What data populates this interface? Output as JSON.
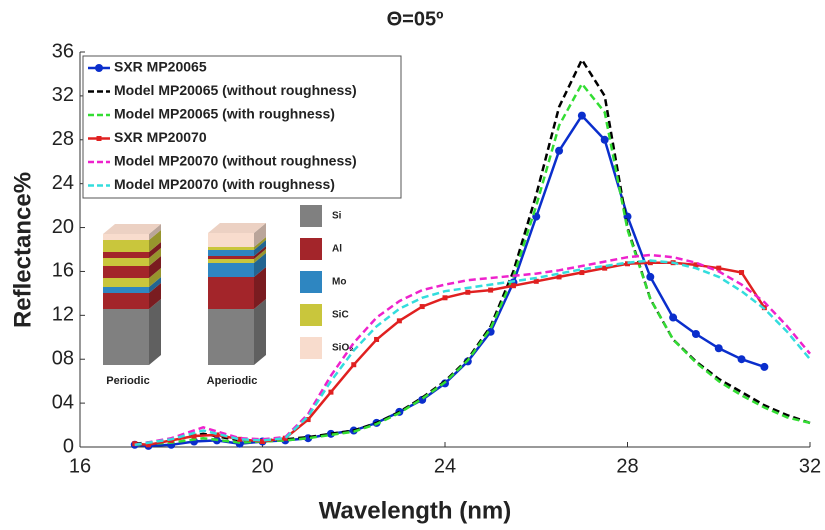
{
  "chart_data": {
    "type": "line",
    "title": "Θ=05º",
    "xlabel": "Wavelength (nm)",
    "ylabel": "Reflectance%",
    "xlim": [
      16,
      32
    ],
    "xticks": [
      16,
      20,
      24,
      28,
      32
    ],
    "ylim": [
      0,
      36
    ],
    "yticks": [
      0,
      {
        "value": 4,
        "label": "04"
      },
      {
        "value": 8,
        "label": "08"
      },
      12,
      16,
      20,
      24,
      28,
      32,
      36
    ],
    "grid": false,
    "legend": "upper left",
    "series": [
      {
        "name": "SXR MP20065",
        "color": "#0a2ecc",
        "dash": false,
        "marker": "circle",
        "x": [
          17.2,
          17.5,
          18,
          18.5,
          19,
          19.5,
          20,
          20.5,
          21,
          21.5,
          22,
          22.5,
          23,
          23.5,
          24,
          24.5,
          25,
          25.5,
          26,
          26.5,
          27,
          27.5,
          28,
          28.5,
          29,
          29.5,
          30,
          30.5,
          31
        ],
        "values": [
          0.2,
          0.1,
          0.2,
          0.5,
          0.6,
          0.3,
          0.5,
          0.6,
          0.8,
          1.2,
          1.5,
          2.2,
          3.2,
          4.3,
          5.8,
          7.8,
          10.5,
          15,
          21,
          27,
          30.2,
          28,
          21,
          15.5,
          11.8,
          10.3,
          9,
          8,
          7.3
        ]
      },
      {
        "name": "Model MP20065 (without roughness)",
        "color": "#000000",
        "dash": true,
        "marker": "none",
        "x": [
          17.2,
          18,
          18.7,
          19.5,
          20,
          20.5,
          21,
          21.5,
          22,
          22.5,
          23,
          23.5,
          24,
          24.5,
          25,
          25.5,
          26,
          26.5,
          27,
          27.5,
          28,
          28.5,
          29,
          29.5,
          30,
          30.5,
          31,
          31.5,
          32
        ],
        "values": [
          0.3,
          0.6,
          1.2,
          0.6,
          0.6,
          0.7,
          0.9,
          1.2,
          1.5,
          2.2,
          3.2,
          4.5,
          6,
          8,
          11,
          16,
          23,
          31,
          35.3,
          32,
          20,
          13.5,
          9.8,
          7.8,
          6.2,
          5,
          3.8,
          2.9,
          2.2
        ]
      },
      {
        "name": "Model MP20065 (with roughness)",
        "color": "#33dd33",
        "dash": true,
        "marker": "none",
        "x": [
          17.2,
          18,
          18.7,
          19.5,
          20,
          20.5,
          21,
          21.5,
          22,
          22.5,
          23,
          23.5,
          24,
          24.5,
          25,
          25.5,
          26,
          26.5,
          27,
          27.5,
          28,
          28.5,
          29,
          29.5,
          30,
          30.5,
          31,
          31.5,
          32
        ],
        "values": [
          0.2,
          0.4,
          0.8,
          0.4,
          0.5,
          0.6,
          0.8,
          1.1,
          1.4,
          2.1,
          3.1,
          4.4,
          5.9,
          7.9,
          10.8,
          15.5,
          22,
          29.3,
          33.1,
          30.5,
          19.8,
          13.5,
          9.8,
          7.7,
          6,
          4.7,
          3.6,
          2.7,
          2.2
        ]
      },
      {
        "name": "SXR MP20070",
        "color": "#e02020",
        "dash": false,
        "marker": "square",
        "x": [
          17.2,
          17.5,
          18,
          18.5,
          19,
          19.5,
          20,
          20.5,
          21,
          21.5,
          22,
          22.5,
          23,
          23.5,
          24,
          24.5,
          25,
          25.5,
          26,
          26.5,
          27,
          27.5,
          28,
          28.5,
          29,
          29.5,
          30,
          30.5,
          31
        ],
        "values": [
          0.3,
          0.2,
          0.6,
          1.0,
          1.1,
          0.7,
          0.5,
          0.8,
          2.5,
          5,
          7.5,
          9.8,
          11.5,
          12.8,
          13.6,
          14.1,
          14.3,
          14.7,
          15.1,
          15.5,
          15.9,
          16.3,
          16.7,
          16.8,
          16.8,
          16.6,
          16.3,
          15.9,
          12.7
        ]
      },
      {
        "name": "Model MP20070 (without roughness)",
        "color": "#ee22cc",
        "dash": true,
        "marker": "none",
        "x": [
          17.2,
          18,
          18.7,
          19.5,
          20,
          20.5,
          21,
          21.5,
          22,
          22.5,
          23,
          23.5,
          24,
          24.5,
          25,
          25.5,
          26,
          26.5,
          27,
          27.5,
          28,
          28.5,
          29,
          29.5,
          30,
          30.5,
          31,
          31.5,
          32
        ],
        "values": [
          0.2,
          0.8,
          1.8,
          0.8,
          0.7,
          0.9,
          3,
          6.5,
          9.5,
          11.8,
          13.3,
          14.3,
          14.8,
          15.2,
          15.4,
          15.6,
          15.8,
          16.1,
          16.5,
          16.9,
          17.3,
          17.5,
          17.3,
          16.8,
          16,
          14.8,
          13.2,
          11,
          8.5
        ]
      },
      {
        "name": "Model MP20070 (with roughness)",
        "color": "#33dddd",
        "dash": true,
        "marker": "none",
        "x": [
          17.2,
          18,
          18.7,
          19.5,
          20,
          20.5,
          21,
          21.5,
          22,
          22.5,
          23,
          23.5,
          24,
          24.5,
          25,
          25.5,
          26,
          26.5,
          27,
          27.5,
          28,
          28.5,
          29,
          29.5,
          30,
          30.5,
          31,
          31.5,
          32
        ],
        "values": [
          0.2,
          0.7,
          1.5,
          0.7,
          0.6,
          0.8,
          2.8,
          6,
          8.8,
          11,
          12.6,
          13.6,
          14.2,
          14.5,
          14.8,
          15.1,
          15.4,
          15.8,
          16.2,
          16.5,
          16.8,
          17,
          16.8,
          16.3,
          15.5,
          14.2,
          12.6,
          10.5,
          8
        ]
      }
    ],
    "inset": {
      "materials": [
        {
          "name": "Si",
          "color": "#808080"
        },
        {
          "name": "Al",
          "color": "#a3252a"
        },
        {
          "name": "Mo",
          "color": "#2e86c1"
        },
        {
          "name": "SiC",
          "color": "#c9c63c"
        },
        {
          "name": "SiO₂",
          "color": "#f8dccd"
        }
      ],
      "labels": [
        "Periodic",
        "Aperiodic"
      ]
    }
  }
}
